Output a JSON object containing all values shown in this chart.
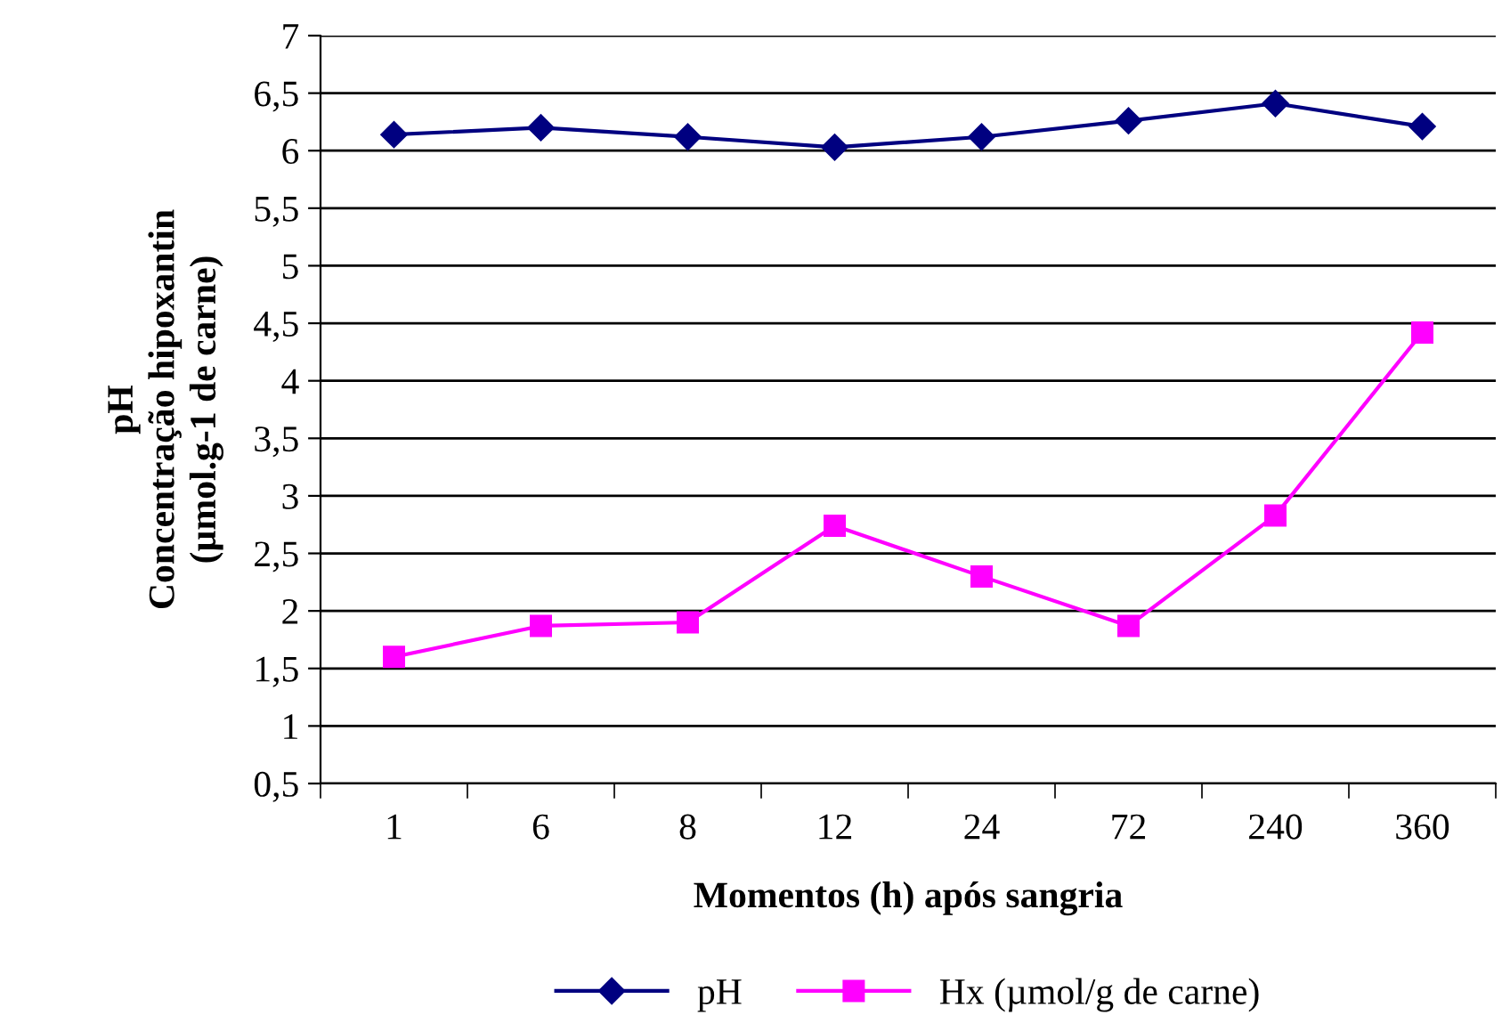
{
  "chart_data": {
    "type": "line",
    "xlabel": "Momentos (h) após sangria",
    "ylabel": "pH\nConcentração hipoxantin\n(µmol.g-1 de carne)",
    "categories": [
      "1",
      "6",
      "8",
      "12",
      "24",
      "72",
      "240",
      "360"
    ],
    "series": [
      {
        "name": "pH",
        "color": "#000080",
        "marker": "diamond",
        "values": [
          6.14,
          6.2,
          6.12,
          6.03,
          6.12,
          6.26,
          6.41,
          6.21
        ]
      },
      {
        "name": "Hx (µmol/g de carne)",
        "color": "#ff00ff",
        "marker": "square",
        "values": [
          1.6,
          1.87,
          1.9,
          2.74,
          2.3,
          1.87,
          2.83,
          4.42
        ]
      }
    ],
    "ylim": [
      0.5,
      7
    ],
    "yticks": [
      {
        "value": 0.5,
        "label": "0,5"
      },
      1,
      {
        "value": 1.5,
        "label": "1,5"
      },
      2,
      {
        "value": 2.5,
        "label": "2,5"
      },
      3,
      {
        "value": 3.5,
        "label": "3,5"
      },
      4,
      {
        "value": 4.5,
        "label": "4,5"
      },
      5,
      {
        "value": 5.5,
        "label": "5,5"
      },
      6,
      {
        "value": 6.5,
        "label": "6,5"
      },
      7
    ],
    "grid": "y",
    "legend": "bottom",
    "line_style": "solid"
  }
}
